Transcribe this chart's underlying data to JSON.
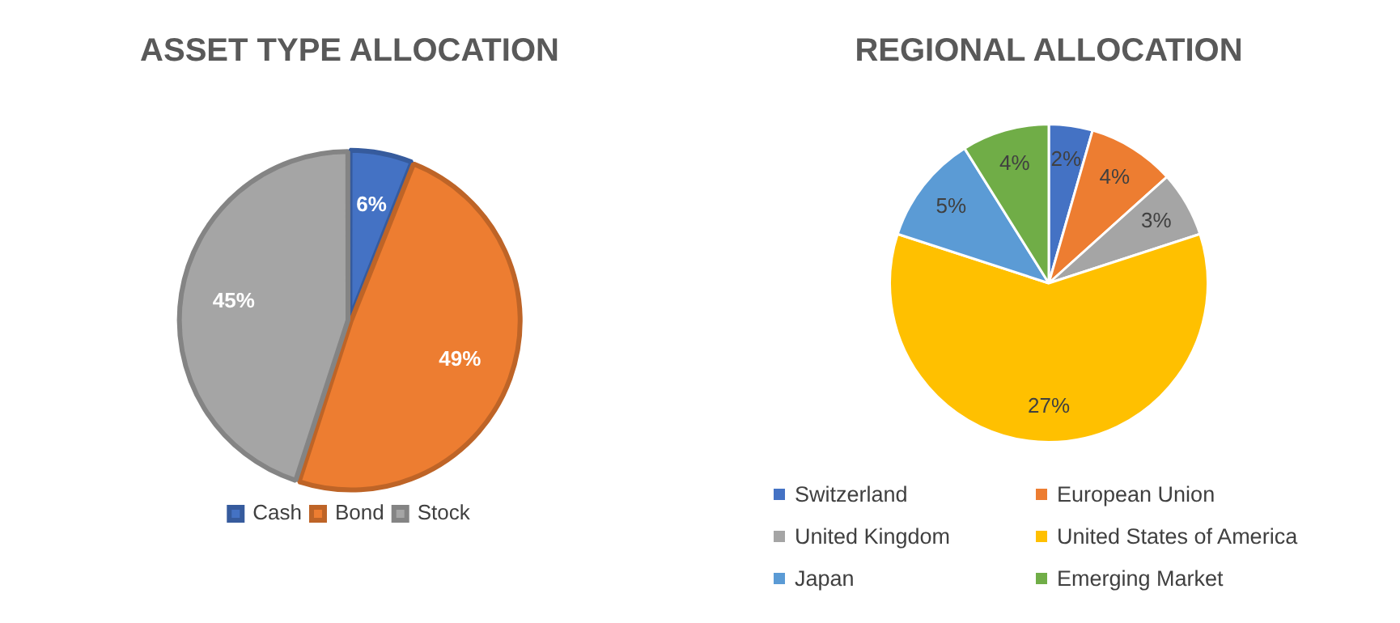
{
  "chart_data": [
    {
      "type": "pie",
      "title": "ASSET TYPE ALLOCATION",
      "categories": [
        "Cash",
        "Bond",
        "Stock"
      ],
      "values": [
        6,
        49,
        45
      ],
      "colors": [
        "#4472c4",
        "#ed7d31",
        "#a5a5a5"
      ],
      "value_labels": [
        "6%",
        "49%",
        "45%"
      ],
      "legend": "bottom"
    },
    {
      "type": "pie",
      "title": "REGIONAL ALLOCATION",
      "categories": [
        "Switzerland",
        "European Union",
        "United Kingdom",
        "United States of America",
        "Japan",
        "Emerging Market"
      ],
      "values": [
        2,
        4,
        3,
        27,
        5,
        4
      ],
      "colors": [
        "#4472c4",
        "#ed7d31",
        "#a5a5a5",
        "#ffc000",
        "#5b9bd5",
        "#70ad47"
      ],
      "value_labels": [
        "2%",
        "4%",
        "3%",
        "27%",
        "5%",
        "4%"
      ],
      "legend": "bottom"
    }
  ]
}
